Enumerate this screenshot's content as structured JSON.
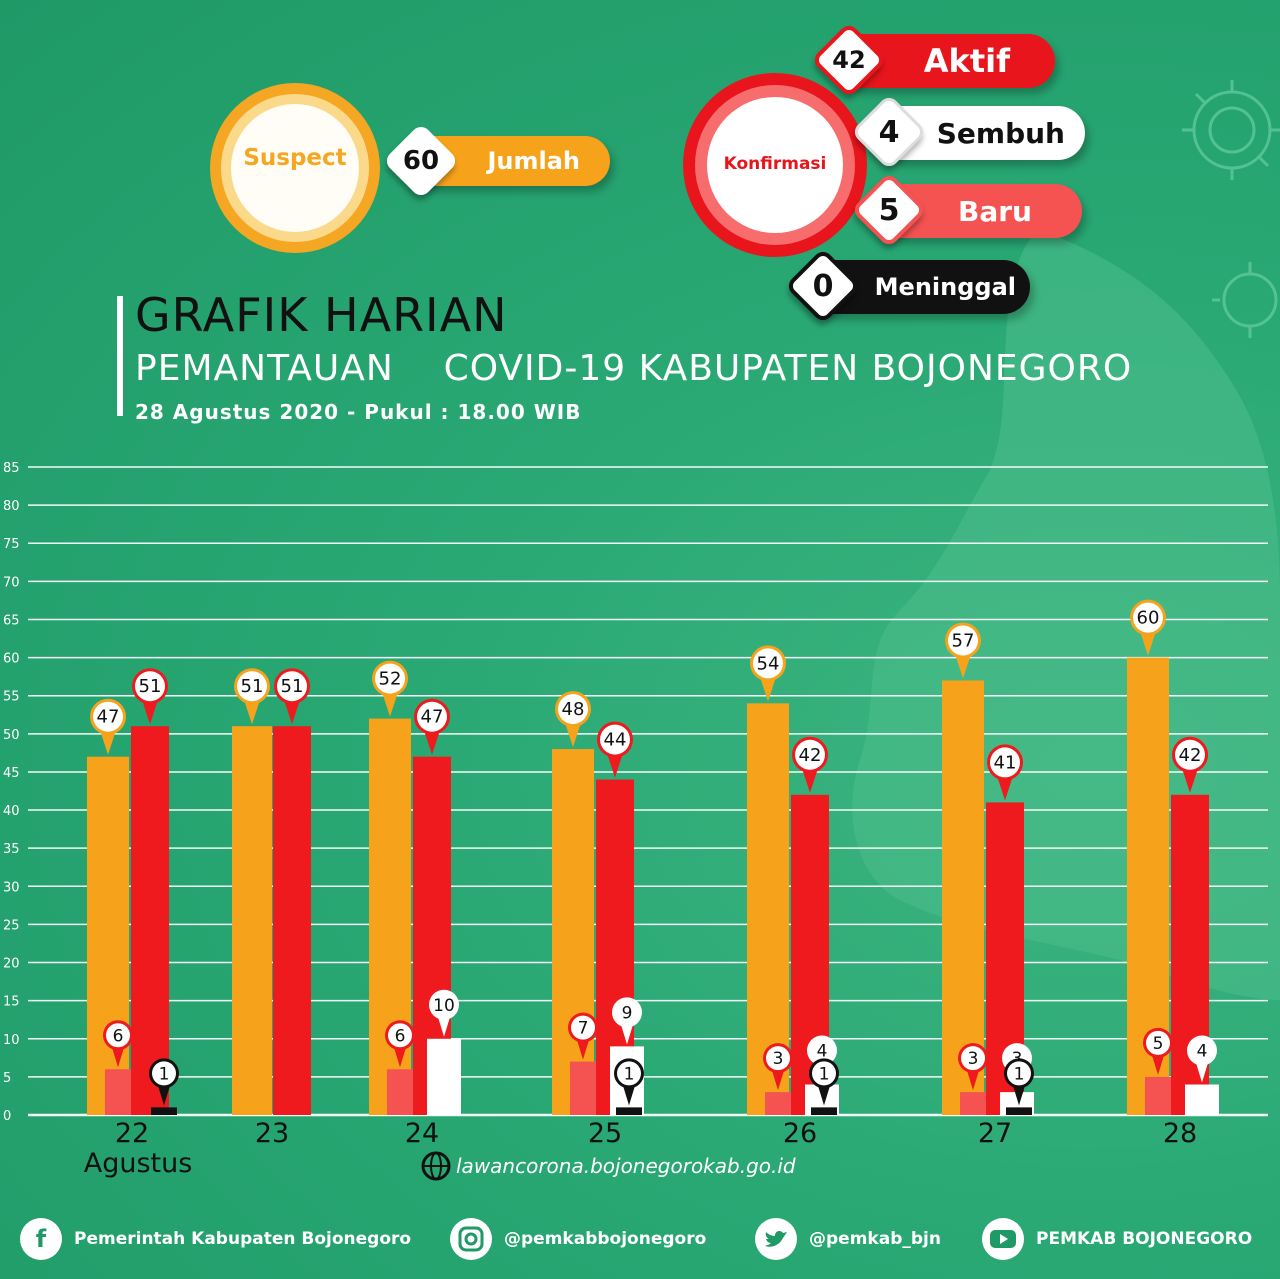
{
  "suspect": {
    "label": "Suspect",
    "value": "60",
    "value_label": "Jumlah"
  },
  "konfirmasi": {
    "label": "Konfirmasi",
    "aktif": {
      "value": "42",
      "label": "Aktif"
    },
    "sembuh": {
      "value": "4",
      "label": "Sembuh"
    },
    "baru": {
      "value": "5",
      "label": "Baru"
    },
    "meninggal": {
      "value": "0",
      "label": "Meninggal"
    }
  },
  "heading": {
    "title": "GRAFIK HARIAN",
    "subtitle": "PEMANTAUAN    COVID-19 KABUPATEN BOJONEGORO",
    "date": "28 Agustus 2020 - Pukul : 18.00 WIB"
  },
  "website": "lawancorona.bojonegorokab.go.id",
  "footer": {
    "facebook": "Pemerintah Kabupaten Bojonegoro",
    "instagram": "@pemkabbojonegoro",
    "twitter": "@pemkab_bjn",
    "youtube": "PEMKAB BOJONEGORO"
  },
  "colors": {
    "suspect": "#f7a21b",
    "aktif": "#ee1a1d",
    "baru": "#f55252",
    "sembuh": "#ffffff",
    "meninggal": "#111111",
    "background": "#24a36f"
  },
  "chart_data": {
    "type": "bar",
    "categories": [
      "22",
      "23",
      "24",
      "25",
      "26",
      "27",
      "28"
    ],
    "category_sublabel": "Agustus",
    "ylim": [
      0,
      85
    ],
    "yticks": [
      0,
      5,
      10,
      15,
      20,
      25,
      30,
      35,
      40,
      45,
      50,
      55,
      60,
      65,
      70,
      75,
      80,
      85
    ],
    "grid": true,
    "series": [
      {
        "key": "suspect",
        "values": [
          47,
          51,
          52,
          48,
          54,
          57,
          60
        ]
      },
      {
        "key": "aktif",
        "values": [
          51,
          51,
          47,
          44,
          42,
          41,
          42
        ]
      },
      {
        "key": "baru",
        "values": [
          6,
          0,
          6,
          7,
          3,
          3,
          5
        ]
      },
      {
        "key": "sembuh",
        "values": [
          0,
          0,
          10,
          9,
          4,
          3,
          4
        ]
      },
      {
        "key": "meninggal",
        "values": [
          1,
          0,
          0,
          1,
          1,
          1,
          0
        ]
      }
    ]
  }
}
